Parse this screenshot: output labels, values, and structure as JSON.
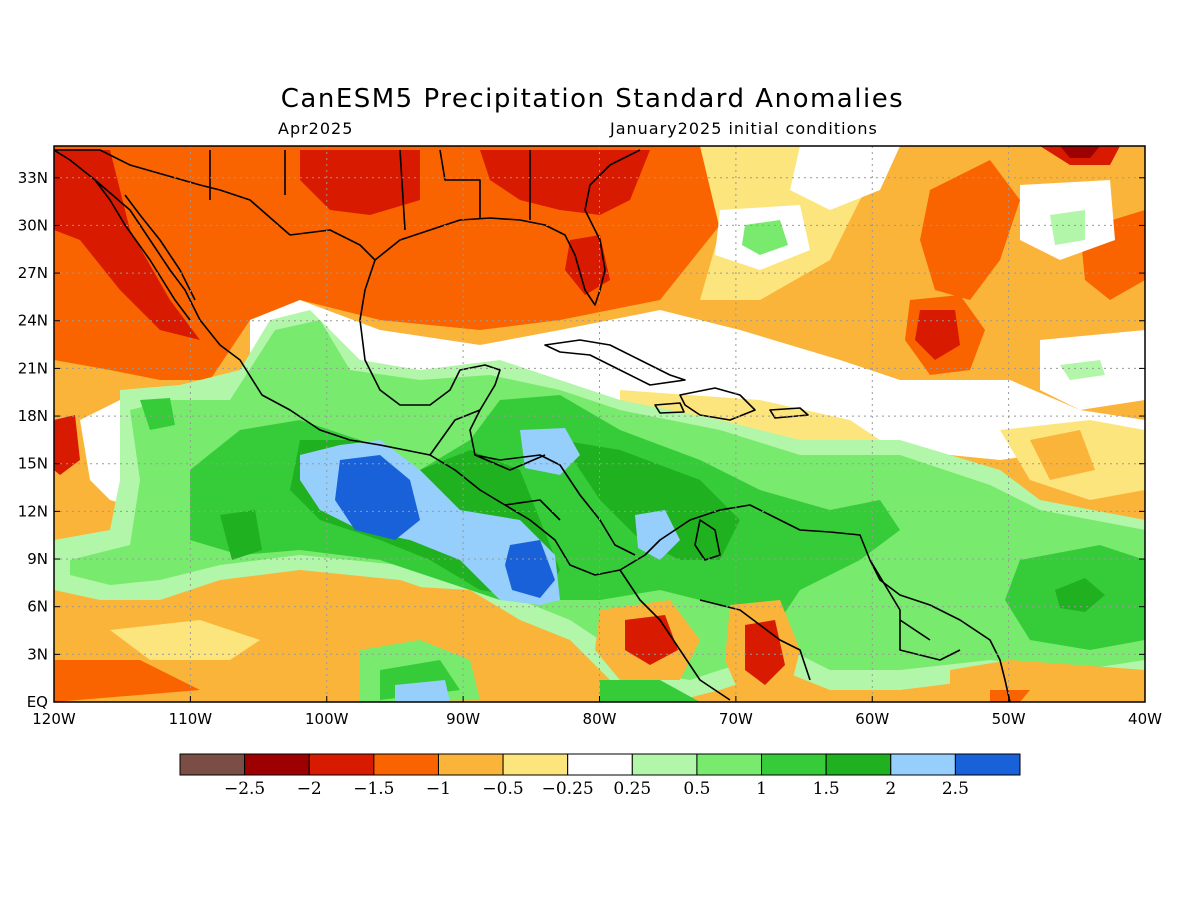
{
  "title": "CanESM5 Precipitation Standard Anomalies",
  "valid_month": "Apr2025",
  "init_conditions": "January2025 initial conditions",
  "colors": {
    "dry_extreme": "#7a4e45",
    "lt_-2": "#9c0000",
    "lt_-1.5": "#d71a00",
    "lt_-1": "#fa6400",
    "lt_-0.5": "#fbb43a",
    "lt_-0.25": "#fde57d",
    "neutral": "#ffffff",
    "gt_0.25": "#b2f6a9",
    "gt_0.5": "#78ea6e",
    "gt_1": "#36cc39",
    "gt_1.5": "#1fb11f",
    "gt_2": "#96cefc",
    "gt_2.5": "#1861d9"
  },
  "map": {
    "lon_ticks": [
      "120W",
      "110W",
      "100W",
      "90W",
      "80W",
      "70W",
      "60W",
      "50W",
      "40W"
    ],
    "lat_ticks": [
      "EQ",
      "3N",
      "6N",
      "9N",
      "12N",
      "15N",
      "18N",
      "21N",
      "24N",
      "27N",
      "30N",
      "33N"
    ],
    "lon_range": [
      -120,
      -40
    ],
    "lat_range": [
      0,
      35
    ]
  },
  "colorbar": {
    "labels": [
      "-2.5",
      "-2",
      "-1.5",
      "-1",
      "-0.5",
      "-0.25",
      "0.25",
      "0.5",
      "1",
      "1.5",
      "2",
      "2.5"
    ],
    "colors": [
      "#7a4e45",
      "#9c0000",
      "#d71a00",
      "#fa6400",
      "#fbb43a",
      "#fde57d",
      "#ffffff",
      "#b2f6a9",
      "#78ea6e",
      "#36cc39",
      "#1fb11f",
      "#96cefc",
      "#1861d9"
    ]
  }
}
